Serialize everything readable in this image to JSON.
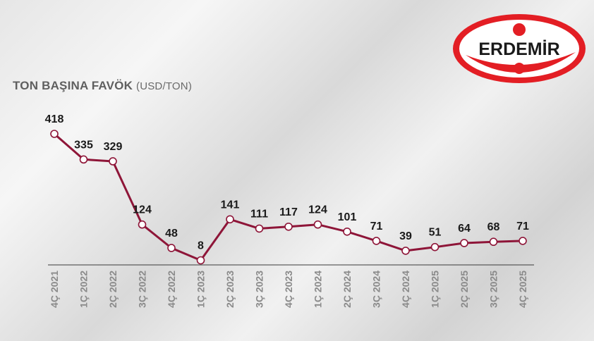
{
  "brand": {
    "name": "ERDEMİR",
    "colors": {
      "red": "#e31e24",
      "line": "#8e1538",
      "text": "#1a1a1a",
      "tick": "#8a8a8a"
    }
  },
  "header": {
    "title": "TON BAŞINA FAVÖK",
    "unit": "(USD/TON)"
  },
  "chart_data": {
    "type": "line",
    "title": "TON BAŞINA FAVÖK",
    "ylabel": "(USD/TON)",
    "categories": [
      "4Ç 2021",
      "1Ç 2022",
      "2Ç 2022",
      "3Ç 2022",
      "4Ç 2022",
      "1Ç 2023",
      "2Ç 2023",
      "3Ç 2023",
      "4Ç 2023",
      "1Ç 2024",
      "2Ç 2024",
      "3Ç 2024",
      "4Ç 2024",
      "1Ç 2025",
      "2Ç 2025",
      "3Ç 2025",
      "4Ç 2025"
    ],
    "series": [
      {
        "values": [
          418,
          335,
          329,
          124,
          48,
          8,
          141,
          111,
          117,
          124,
          101,
          71,
          39,
          51,
          64,
          68,
          71
        ]
      }
    ],
    "ylim": [
      0,
      418
    ],
    "grid": false,
    "legend": "none",
    "data_labels": true
  }
}
